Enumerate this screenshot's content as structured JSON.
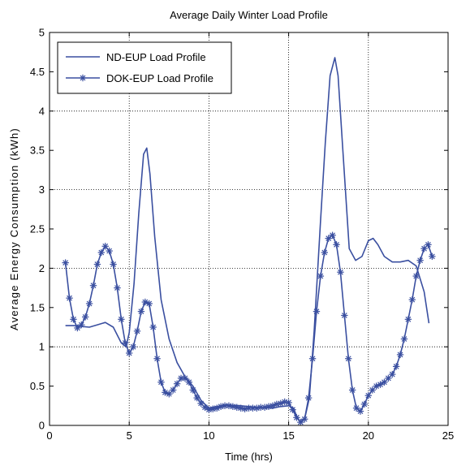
{
  "chart_data": {
    "type": "line",
    "title": "Average Daily Winter Load Profile",
    "xlabel": "Time (hrs)",
    "ylabel": "Average Energy Consumption (kWh)",
    "xlim": [
      0,
      25
    ],
    "ylim": [
      0,
      5
    ],
    "xticks": [
      "0",
      "5",
      "10",
      "15",
      "20",
      "25"
    ],
    "yticks": [
      "0",
      "0.5",
      "1",
      "1.5",
      "2",
      "2.5",
      "3",
      "3.5",
      "4",
      "4.5",
      "5"
    ],
    "grid": true,
    "legend_position": "top-left",
    "series": [
      {
        "name": "ND-EUP Load Profile",
        "color": "#3a4fa0",
        "marker": "none",
        "x": [
          1.0,
          1.5,
          2.0,
          2.5,
          3.0,
          3.5,
          4.0,
          4.5,
          4.8,
          5.0,
          5.3,
          5.6,
          5.9,
          6.1,
          6.3,
          6.6,
          7.0,
          7.5,
          8.0,
          8.5,
          9.0,
          9.5,
          10.0,
          10.5,
          11.0,
          12.0,
          13.0,
          14.0,
          14.5,
          15.0,
          15.3,
          15.5,
          15.7,
          16.0,
          16.3,
          16.6,
          17.0,
          17.3,
          17.6,
          17.9,
          18.1,
          18.4,
          18.8,
          19.2,
          19.6,
          20.0,
          20.3,
          20.6,
          21.0,
          21.5,
          22.0,
          22.5,
          23.0,
          23.5,
          23.8
        ],
        "y": [
          1.27,
          1.27,
          1.26,
          1.25,
          1.28,
          1.31,
          1.25,
          1.05,
          1.0,
          1.18,
          1.8,
          2.7,
          3.45,
          3.53,
          3.2,
          2.4,
          1.6,
          1.1,
          0.8,
          0.62,
          0.5,
          0.32,
          0.22,
          0.24,
          0.26,
          0.25,
          0.23,
          0.22,
          0.24,
          0.25,
          0.22,
          0.12,
          0.05,
          0.08,
          0.35,
          1.2,
          2.6,
          3.6,
          4.45,
          4.68,
          4.45,
          3.5,
          2.25,
          2.1,
          2.15,
          2.35,
          2.38,
          2.3,
          2.15,
          2.08,
          2.08,
          2.1,
          2.03,
          1.7,
          1.3
        ]
      },
      {
        "name": "DOK-EUP Load Profile",
        "color": "#3a4fa0",
        "marker": "star",
        "x": [
          1.0,
          1.25,
          1.5,
          1.75,
          2.0,
          2.25,
          2.5,
          2.75,
          3.0,
          3.25,
          3.5,
          3.75,
          4.0,
          4.25,
          4.5,
          4.75,
          5.0,
          5.25,
          5.5,
          5.75,
          6.0,
          6.25,
          6.5,
          6.75,
          7.0,
          7.25,
          7.5,
          7.75,
          8.0,
          8.25,
          8.5,
          8.75,
          9.0,
          9.25,
          9.5,
          9.75,
          10.0,
          10.25,
          10.5,
          10.75,
          11.0,
          11.25,
          11.5,
          11.75,
          12.0,
          12.25,
          12.5,
          12.75,
          13.0,
          13.25,
          13.5,
          13.75,
          14.0,
          14.25,
          14.5,
          14.75,
          15.0,
          15.25,
          15.5,
          15.75,
          16.0,
          16.25,
          16.5,
          16.75,
          17.0,
          17.25,
          17.5,
          17.75,
          18.0,
          18.25,
          18.5,
          18.75,
          19.0,
          19.25,
          19.5,
          19.75,
          20.0,
          20.25,
          20.5,
          20.75,
          21.0,
          21.25,
          21.5,
          21.75,
          22.0,
          22.25,
          22.5,
          22.75,
          23.0,
          23.25,
          23.5,
          23.75,
          24.0
        ],
        "y": [
          2.07,
          1.62,
          1.35,
          1.24,
          1.28,
          1.38,
          1.55,
          1.78,
          2.05,
          2.2,
          2.28,
          2.22,
          2.05,
          1.75,
          1.35,
          1.05,
          0.92,
          1.0,
          1.2,
          1.45,
          1.57,
          1.55,
          1.25,
          0.85,
          0.55,
          0.42,
          0.4,
          0.45,
          0.53,
          0.6,
          0.6,
          0.55,
          0.45,
          0.35,
          0.28,
          0.23,
          0.2,
          0.21,
          0.22,
          0.24,
          0.25,
          0.25,
          0.24,
          0.23,
          0.22,
          0.21,
          0.22,
          0.22,
          0.22,
          0.23,
          0.23,
          0.24,
          0.25,
          0.27,
          0.28,
          0.3,
          0.29,
          0.2,
          0.1,
          0.04,
          0.08,
          0.35,
          0.85,
          1.45,
          1.9,
          2.2,
          2.38,
          2.42,
          2.3,
          1.95,
          1.4,
          0.85,
          0.45,
          0.22,
          0.18,
          0.27,
          0.38,
          0.45,
          0.5,
          0.52,
          0.55,
          0.6,
          0.65,
          0.75,
          0.9,
          1.1,
          1.35,
          1.6,
          1.9,
          2.1,
          2.25,
          2.3,
          2.15
        ]
      }
    ]
  }
}
